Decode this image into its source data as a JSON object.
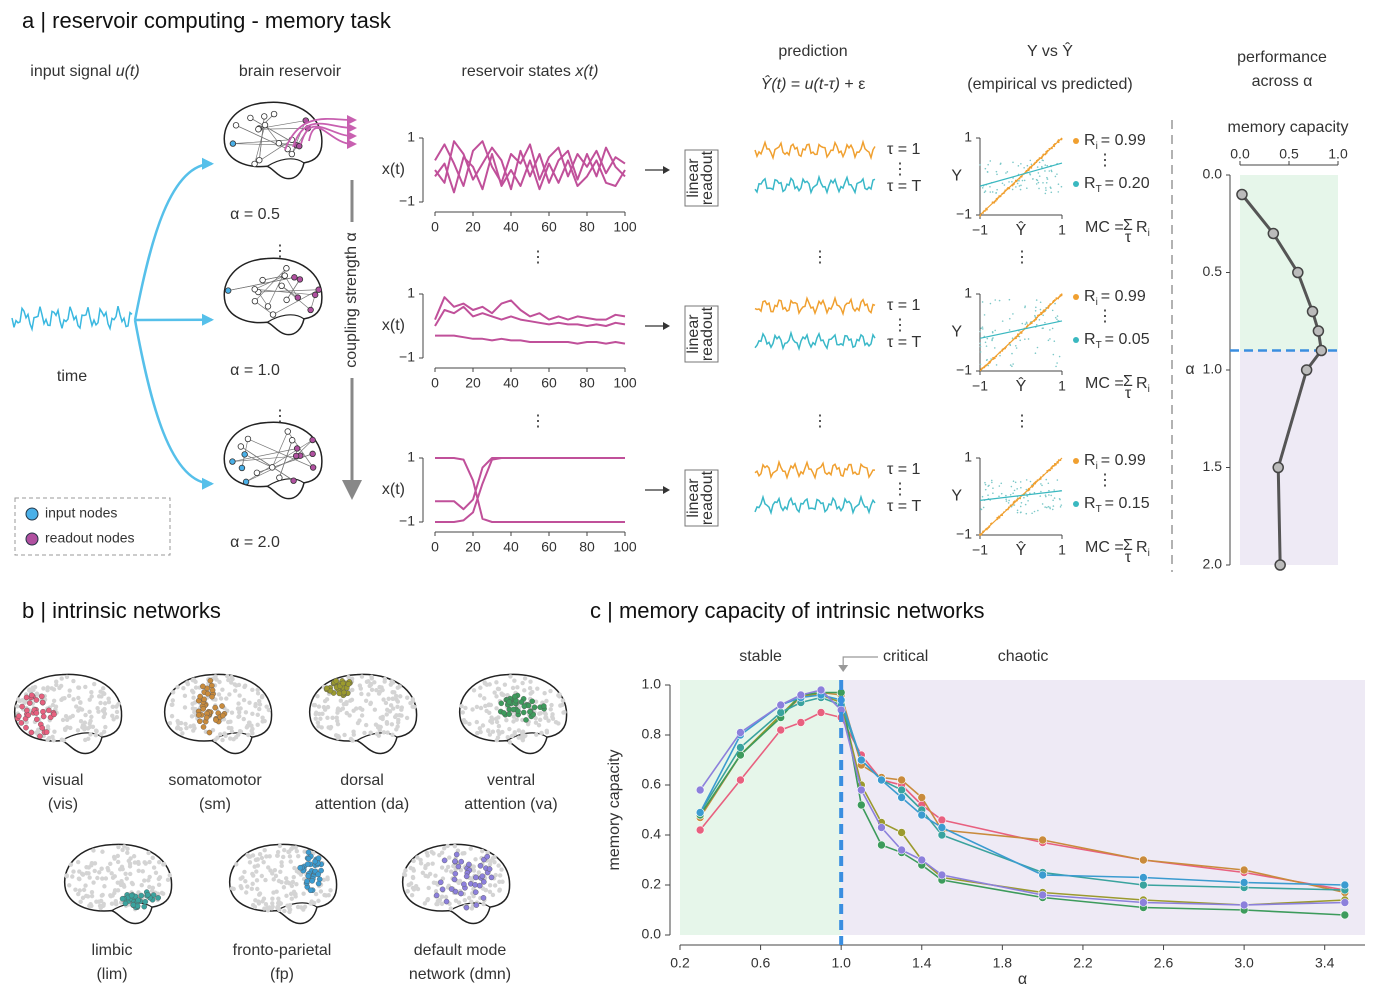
{
  "panel_a": {
    "title": "a | reservoir computing - memory task",
    "input_label": [
      "input signal ",
      "u(t)"
    ],
    "time_label": "time",
    "reservoir_label": "brain reservoir",
    "alpha_labels": [
      "α  = 0.5",
      "α  = 1.0",
      "α  = 2.0"
    ],
    "coupling_label": "coupling strength α",
    "legend": [
      "input nodes",
      "readout nodes"
    ],
    "states_label": [
      "reservoir states ",
      "x(t)"
    ],
    "readout_label": [
      "linear",
      "readout"
    ],
    "prediction_label": "prediction",
    "prediction_formula": [
      "Ŷ(t)",
      " = ",
      "u(t-τ)",
      " + ε"
    ],
    "tau_labels": [
      "τ = 1",
      "τ = T"
    ],
    "scatter_title": "Y vs Ŷ",
    "scatter_subtitle": "(empirical vs predicted)",
    "r_symbol": "R",
    "r_sub_first": "i",
    "r_sub_last": "T",
    "r_rows": [
      {
        "first": "= 0.99",
        "last": "= 0.20"
      },
      {
        "first": "= 0.99",
        "last": "= 0.05"
      },
      {
        "first": "= 0.99",
        "last": "= 0.15"
      }
    ],
    "mc_label": {
      "lhs": "MC =",
      "sum": "Σ",
      "under": "τ",
      "r": "R",
      "sub": "i"
    },
    "performance_title": [
      "performance",
      "across α"
    ],
    "vdots": "⋮"
  },
  "panel_b": {
    "title": "b | intrinsic networks",
    "networks": [
      [
        "visual",
        "(vis)"
      ],
      [
        "somatomotor",
        "(sm)"
      ],
      [
        "dorsal",
        "attention (da)"
      ],
      [
        "ventral",
        "attention (va)"
      ],
      [
        "limbic",
        "(lim)"
      ],
      [
        "fronto-parietal",
        "(fp)"
      ],
      [
        "default mode",
        "network (dmn)"
      ]
    ]
  },
  "chart_data": [
    {
      "type": "line",
      "ylabel": "x(t)",
      "x": [
        0,
        5,
        10,
        15,
        20,
        25,
        30,
        35,
        40,
        45,
        50,
        55,
        60,
        65,
        70,
        75,
        80,
        85,
        90,
        95,
        100
      ],
      "xlim": [
        0,
        100
      ],
      "xticks": [
        0,
        20,
        40,
        60,
        80,
        100
      ],
      "ylim": [
        -1,
        1
      ],
      "yticks": [
        1,
        {
          "value": -1,
          "label": "−1"
        }
      ],
      "series": [
        {
          "color": "#c0509a",
          "values": [
            0.3,
            0.8,
            0.2,
            -0.5,
            0.6,
            0.9,
            0.1,
            -0.4,
            0.5,
            0.2,
            0.8,
            -0.3,
            0.4,
            0.7,
            -0.2,
            0.5,
            0.1,
            0.6,
            -0.1,
            0.4,
            0.2
          ]
        },
        {
          "color": "#c0509a",
          "values": [
            0.0,
            -0.4,
            0.9,
            0.5,
            -0.3,
            0.2,
            0.7,
            0.3,
            -0.6,
            0.6,
            -0.2,
            0.5,
            -0.4,
            0.3,
            0.6,
            -0.3,
            0.5,
            -0.2,
            0.7,
            0.1,
            -0.2
          ]
        },
        {
          "color": "#c0509a",
          "values": [
            -0.2,
            0.2,
            -0.7,
            0.4,
            0.1,
            -0.6,
            0.5,
            -0.5,
            0.0,
            -0.5,
            0.3,
            -0.6,
            0.2,
            -0.4,
            0.3,
            -0.5,
            -0.2,
            0.3,
            -0.4,
            -0.5,
            0.0
          ]
        }
      ]
    },
    {
      "type": "line",
      "ylabel": "x(t)",
      "x": [
        0,
        5,
        10,
        15,
        20,
        25,
        30,
        35,
        40,
        45,
        50,
        55,
        60,
        65,
        70,
        75,
        80,
        85,
        90,
        95,
        100
      ],
      "xlim": [
        0,
        100
      ],
      "xticks": [
        0,
        20,
        40,
        60,
        80,
        100
      ],
      "ylim": [
        -1,
        1
      ],
      "yticks": [
        1,
        {
          "value": -1,
          "label": "−1"
        }
      ],
      "series": [
        {
          "color": "#c0509a",
          "values": [
            0.2,
            0.9,
            0.6,
            0.7,
            0.5,
            0.6,
            0.4,
            0.7,
            0.8,
            0.5,
            0.3,
            0.4,
            0.2,
            0.3,
            0.2,
            0.3,
            0.25,
            0.2,
            0.2,
            0.35,
            0.3
          ]
        },
        {
          "color": "#c0509a",
          "values": [
            0.0,
            0.5,
            0.4,
            0.6,
            0.3,
            0.4,
            0.3,
            0.2,
            0.3,
            0.2,
            0.15,
            0.1,
            0.05,
            0.1,
            0.05,
            0.05,
            0.0,
            0.05,
            0.0,
            0.1,
            0.05
          ]
        },
        {
          "color": "#c0509a",
          "values": [
            -0.3,
            -0.3,
            -0.3,
            -0.35,
            -0.4,
            -0.4,
            -0.45,
            -0.4,
            -0.45,
            -0.45,
            -0.5,
            -0.5,
            -0.5,
            -0.5,
            -0.5,
            -0.55,
            -0.5,
            -0.5,
            -0.55,
            -0.5,
            -0.55
          ]
        }
      ]
    },
    {
      "type": "line",
      "ylabel": "x(t)",
      "x": [
        0,
        5,
        10,
        15,
        20,
        25,
        30,
        35,
        40,
        45,
        50,
        55,
        60,
        65,
        70,
        75,
        80,
        85,
        90,
        95,
        100
      ],
      "xlim": [
        0,
        100
      ],
      "xticks": [
        0,
        20,
        40,
        60,
        80,
        100
      ],
      "ylim": [
        -1,
        1
      ],
      "yticks": [
        1,
        {
          "value": -1,
          "label": "−1"
        }
      ],
      "series": [
        {
          "color": "#c0509a",
          "values": [
            1,
            1,
            1,
            0.95,
            0.3,
            -0.9,
            -1,
            -1,
            -1,
            -1,
            -1,
            -1,
            -1,
            -1,
            -1,
            -1,
            -1,
            -1,
            -1,
            -1,
            -1
          ]
        },
        {
          "color": "#c0509a",
          "values": [
            -0.35,
            -0.35,
            -0.35,
            -0.6,
            -0.3,
            0.7,
            1,
            1,
            1,
            1,
            1,
            1,
            1,
            1,
            1,
            1,
            1,
            1,
            1,
            1,
            1
          ]
        },
        {
          "color": "#c0509a",
          "values": [
            -1,
            -1,
            -1,
            -0.95,
            -0.7,
            0.2,
            0.95,
            1,
            1,
            1,
            1,
            1,
            1,
            1,
            1,
            1,
            1,
            1,
            1,
            1,
            1
          ]
        }
      ]
    },
    {
      "type": "line",
      "xlabel": "Ŷ",
      "ylabel": "Y",
      "x": [
        -1,
        1
      ],
      "xlim": [
        -1,
        1
      ],
      "xticks": [
        {
          "value": -1,
          "label": "−1"
        },
        1
      ],
      "ylim": [
        -1,
        1
      ],
      "yticks": [
        1,
        {
          "value": -1,
          "label": "−1"
        }
      ],
      "series": [
        {
          "color": "#f0a030",
          "values": [
            -1,
            1
          ]
        },
        {
          "color": "#3ab8c0",
          "values": [
            -0.25,
            0.35
          ]
        }
      ]
    },
    {
      "type": "line",
      "xlabel": "Ŷ",
      "ylabel": "Y",
      "x": [
        -1,
        1
      ],
      "xlim": [
        -1,
        1
      ],
      "xticks": [
        {
          "value": -1,
          "label": "−1"
        },
        1
      ],
      "ylim": [
        -1,
        1
      ],
      "yticks": [
        1,
        {
          "value": -1,
          "label": "−1"
        }
      ],
      "series": [
        {
          "color": "#f0a030",
          "values": [
            -1,
            1
          ]
        },
        {
          "color": "#3ab8c0",
          "values": [
            -0.15,
            0.3
          ]
        }
      ]
    },
    {
      "type": "line",
      "xlabel": "Ŷ",
      "ylabel": "Y",
      "x": [
        -1,
        1
      ],
      "xlim": [
        -1,
        1
      ],
      "xticks": [
        {
          "value": -1,
          "label": "−1"
        },
        1
      ],
      "ylim": [
        -1,
        1
      ],
      "yticks": [
        1,
        {
          "value": -1,
          "label": "−1"
        }
      ],
      "series": [
        {
          "color": "#f0a030",
          "values": [
            -1,
            1
          ]
        },
        {
          "color": "#3ab8c0",
          "values": [
            -0.1,
            0.15
          ]
        }
      ]
    },
    {
      "type": "line",
      "orientation": "vertical",
      "title": "memory capacity",
      "xlabel": "α",
      "x": [
        0.1,
        0.3,
        0.5,
        0.7,
        0.8,
        0.9,
        1.0,
        1.5,
        2.0
      ],
      "values": [
        0.02,
        0.34,
        0.59,
        0.74,
        0.8,
        0.83,
        0.68,
        0.39,
        0.41
      ],
      "color": "#555555",
      "xlim": [
        0,
        2
      ],
      "xticks": [
        {
          "value": 0,
          "label": "0.0"
        },
        0.5,
        {
          "value": 1,
          "label": "1.0"
        },
        1.5,
        {
          "value": 2,
          "label": "2.0"
        }
      ],
      "ylim": [
        0,
        1
      ],
      "yticks": [
        {
          "value": 0,
          "label": "0.0"
        },
        0.5,
        {
          "value": 1,
          "label": "1.0"
        }
      ],
      "regions": [
        {
          "from": 0,
          "to": 0.9,
          "color": "#e6f6ea"
        },
        {
          "from": 0.9,
          "to": 2,
          "color": "#eeeaf5"
        }
      ],
      "critical": 0.9
    },
    {
      "type": "line",
      "title": "c | memory capacity of intrinsic networks",
      "xlabel": "α",
      "ylabel": "memory capacity",
      "x": [
        0.3,
        0.5,
        0.7,
        0.8,
        0.9,
        1.0,
        1.1,
        1.2,
        1.3,
        1.4,
        1.5,
        2.0,
        2.5,
        3.0,
        3.5
      ],
      "xlim": [
        0.2,
        3.6
      ],
      "xticks": [
        0.2,
        0.6,
        {
          "value": 1,
          "label": "1.0"
        },
        1.4,
        1.8,
        2.2,
        2.6,
        {
          "value": 3,
          "label": "3.0"
        },
        3.4
      ],
      "ylim": [
        0,
        1
      ],
      "yticks": [
        {
          "value": 0,
          "label": "0.0"
        },
        0.2,
        0.4,
        0.6,
        0.8,
        {
          "value": 1,
          "label": "1.0"
        }
      ],
      "regions": [
        {
          "label": "stable",
          "from": 0.2,
          "to": 1.0,
          "color": "#e6f6ea"
        },
        {
          "label": "chaotic",
          "from": 1.0,
          "to": 3.6,
          "color": "#eeeaf5"
        }
      ],
      "critical": {
        "label": "critical",
        "value": 1.0
      },
      "series": [
        {
          "color": "#e8607f",
          "values": [
            0.42,
            0.62,
            0.82,
            0.85,
            0.89,
            0.87,
            0.72,
            0.62,
            0.6,
            0.52,
            0.46,
            0.37,
            0.3,
            0.25,
            0.18
          ]
        },
        {
          "color": "#c98b3c",
          "values": [
            0.47,
            0.72,
            0.88,
            0.95,
            0.97,
            0.96,
            0.68,
            0.63,
            0.62,
            0.55,
            0.42,
            0.38,
            0.3,
            0.26,
            0.17
          ]
        },
        {
          "color": "#9b9a2e",
          "values": [
            0.48,
            0.72,
            0.88,
            0.96,
            0.96,
            0.93,
            0.6,
            0.45,
            0.41,
            0.3,
            0.23,
            0.17,
            0.14,
            0.12,
            0.14
          ]
        },
        {
          "color": "#3d9b5c",
          "values": [
            0.48,
            0.72,
            0.87,
            0.96,
            0.97,
            0.97,
            0.52,
            0.36,
            0.33,
            0.28,
            0.22,
            0.15,
            0.11,
            0.1,
            0.08
          ]
        },
        {
          "color": "#3aa39e",
          "values": [
            0.49,
            0.75,
            0.89,
            0.93,
            0.95,
            0.92,
            0.7,
            0.62,
            0.58,
            0.5,
            0.4,
            0.25,
            0.2,
            0.19,
            0.18
          ]
        },
        {
          "color": "#3b9bd0",
          "values": [
            0.49,
            0.8,
            0.92,
            0.95,
            0.96,
            0.94,
            0.7,
            0.62,
            0.55,
            0.48,
            0.43,
            0.24,
            0.23,
            0.21,
            0.2
          ]
        },
        {
          "color": "#8c80dc",
          "values": [
            0.58,
            0.81,
            0.92,
            0.96,
            0.98,
            0.9,
            0.58,
            0.43,
            0.34,
            0.3,
            0.24,
            0.16,
            0.13,
            0.12,
            0.13
          ]
        }
      ]
    }
  ]
}
